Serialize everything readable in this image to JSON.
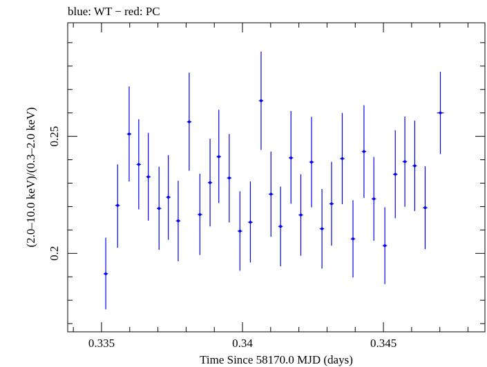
{
  "chart_data": {
    "type": "scatter",
    "title": "blue: WT − red: PC",
    "xlabel": "Time Since 58170.0 MJD (days)",
    "ylabel": "(2.0–10.0 keV)/(0.3–2.0 keV)",
    "xlim": [
      0.3338,
      0.3486
    ],
    "ylim": [
      0.1665,
      0.2985
    ],
    "x_ticks": [
      0.335,
      0.34,
      0.345
    ],
    "x_tick_labels": [
      "0.335",
      "0.34",
      "0.345"
    ],
    "y_ticks": [
      0.2,
      0.25
    ],
    "y_tick_labels": [
      "0.2",
      "0.25"
    ],
    "grid": false,
    "series": [
      {
        "name": "WT",
        "color": "#0000ee",
        "points": [
          {
            "x": 0.33515,
            "y": 0.1913,
            "xerr": 8e-05,
            "ylo": 0.1761,
            "yhi": 0.2067
          },
          {
            "x": 0.33557,
            "y": 0.2205,
            "xerr": 8e-05,
            "ylo": 0.2024,
            "yhi": 0.238
          },
          {
            "x": 0.33598,
            "y": 0.251,
            "xerr": 8e-05,
            "ylo": 0.2307,
            "yhi": 0.2713
          },
          {
            "x": 0.33632,
            "y": 0.238,
            "xerr": 8e-05,
            "ylo": 0.2188,
            "yhi": 0.2573
          },
          {
            "x": 0.33666,
            "y": 0.2327,
            "xerr": 8e-05,
            "ylo": 0.214,
            "yhi": 0.2515
          },
          {
            "x": 0.33704,
            "y": 0.2192,
            "xerr": 8e-05,
            "ylo": 0.2015,
            "yhi": 0.237
          },
          {
            "x": 0.33737,
            "y": 0.224,
            "xerr": 8e-05,
            "ylo": 0.2058,
            "yhi": 0.242
          },
          {
            "x": 0.33772,
            "y": 0.2139,
            "xerr": 8e-05,
            "ylo": 0.1966,
            "yhi": 0.231
          },
          {
            "x": 0.33811,
            "y": 0.2562,
            "xerr": 8e-05,
            "ylo": 0.2353,
            "yhi": 0.2772
          },
          {
            "x": 0.33849,
            "y": 0.2166,
            "xerr": 8e-05,
            "ylo": 0.1993,
            "yhi": 0.234
          },
          {
            "x": 0.33885,
            "y": 0.2302,
            "xerr": 8e-05,
            "ylo": 0.2115,
            "yhi": 0.249
          },
          {
            "x": 0.33916,
            "y": 0.2413,
            "xerr": 8e-05,
            "ylo": 0.2215,
            "yhi": 0.2613
          },
          {
            "x": 0.33953,
            "y": 0.2322,
            "xerr": 8e-05,
            "ylo": 0.2132,
            "yhi": 0.251
          },
          {
            "x": 0.33991,
            "y": 0.2095,
            "xerr": 8e-05,
            "ylo": 0.1926,
            "yhi": 0.2265
          },
          {
            "x": 0.34028,
            "y": 0.2133,
            "xerr": 8e-05,
            "ylo": 0.1961,
            "yhi": 0.2307
          },
          {
            "x": 0.34066,
            "y": 0.2652,
            "xerr": 8e-05,
            "ylo": 0.2442,
            "yhi": 0.2862
          },
          {
            "x": 0.34101,
            "y": 0.2253,
            "xerr": 8e-05,
            "ylo": 0.2071,
            "yhi": 0.2435
          },
          {
            "x": 0.34135,
            "y": 0.2115,
            "xerr": 8e-05,
            "ylo": 0.1945,
            "yhi": 0.2285
          },
          {
            "x": 0.34172,
            "y": 0.2408,
            "xerr": 8e-05,
            "ylo": 0.2212,
            "yhi": 0.2608
          },
          {
            "x": 0.34207,
            "y": 0.2164,
            "xerr": 8e-05,
            "ylo": 0.199,
            "yhi": 0.2338
          },
          {
            "x": 0.34245,
            "y": 0.239,
            "xerr": 8e-05,
            "ylo": 0.2197,
            "yhi": 0.2583
          },
          {
            "x": 0.34282,
            "y": 0.2105,
            "xerr": 8e-05,
            "ylo": 0.1935,
            "yhi": 0.2275
          },
          {
            "x": 0.34316,
            "y": 0.2212,
            "xerr": 8e-05,
            "ylo": 0.2033,
            "yhi": 0.2391
          },
          {
            "x": 0.34354,
            "y": 0.2405,
            "xerr": 8e-05,
            "ylo": 0.221,
            "yhi": 0.26
          },
          {
            "x": 0.34392,
            "y": 0.2062,
            "xerr": 8e-05,
            "ylo": 0.1897,
            "yhi": 0.2227
          },
          {
            "x": 0.34431,
            "y": 0.2435,
            "xerr": 8e-05,
            "ylo": 0.2237,
            "yhi": 0.2633
          },
          {
            "x": 0.34466,
            "y": 0.2233,
            "xerr": 8e-05,
            "ylo": 0.2054,
            "yhi": 0.2412
          },
          {
            "x": 0.34505,
            "y": 0.2033,
            "xerr": 8e-05,
            "ylo": 0.1869,
            "yhi": 0.2197
          },
          {
            "x": 0.34542,
            "y": 0.2338,
            "xerr": 8e-05,
            "ylo": 0.215,
            "yhi": 0.2526
          },
          {
            "x": 0.34576,
            "y": 0.2392,
            "xerr": 8e-05,
            "ylo": 0.2199,
            "yhi": 0.2585
          },
          {
            "x": 0.34611,
            "y": 0.2374,
            "xerr": 8e-05,
            "ylo": 0.2181,
            "yhi": 0.2567
          },
          {
            "x": 0.34648,
            "y": 0.2195,
            "xerr": 8e-05,
            "ylo": 0.2018,
            "yhi": 0.2372
          },
          {
            "x": 0.34702,
            "y": 0.26,
            "xerr": 0.00012,
            "ylo": 0.2424,
            "yhi": 0.2776
          }
        ]
      }
    ]
  }
}
